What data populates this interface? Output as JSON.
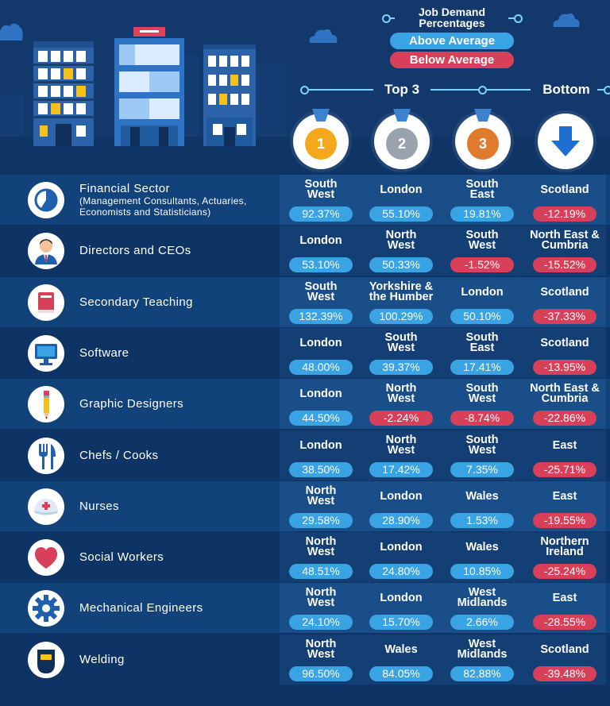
{
  "legend": {
    "title_line1": "Job Demand",
    "title_line2": "Percentages",
    "above_label": "Above Average",
    "below_label": "Below Average",
    "above_color": "#3aa3e3",
    "below_color": "#d8405a"
  },
  "columns": {
    "top_label": "Top 3",
    "bottom_label": "Bottom",
    "medals": [
      {
        "number": "1",
        "icon": "gold-medal-icon",
        "color": "#f4a91d"
      },
      {
        "number": "2",
        "icon": "silver-medal-icon",
        "color": "#9aa3ad"
      },
      {
        "number": "3",
        "icon": "bronze-medal-icon",
        "color": "#e07b2e"
      },
      {
        "number": "",
        "icon": "down-arrow-icon",
        "color": "#1e6fd0"
      }
    ]
  },
  "chart_data": {
    "type": "table",
    "columns": [
      "1",
      "2",
      "3",
      "Bottom"
    ],
    "rows": [
      {
        "category": "Financial Sector",
        "subtitle": "(Management Consultants, Actuaries, Economists and Statisticians)",
        "icon": "pie-chart-icon",
        "entries": [
          {
            "region": [
              "South",
              "West"
            ],
            "pct": "92.37%",
            "value": 92.37
          },
          {
            "region": [
              "London"
            ],
            "pct": "55.10%",
            "value": 55.1
          },
          {
            "region": [
              "South",
              "East"
            ],
            "pct": "19.81%",
            "value": 19.81
          },
          {
            "region": [
              "Scotland"
            ],
            "pct": "-12.19%",
            "value": -12.19
          }
        ]
      },
      {
        "category": "Directors and CEOs",
        "subtitle": "",
        "icon": "businessman-icon",
        "entries": [
          {
            "region": [
              "London"
            ],
            "pct": "53.10%",
            "value": 53.1
          },
          {
            "region": [
              "North",
              "West"
            ],
            "pct": "50.33%",
            "value": 50.33
          },
          {
            "region": [
              "South",
              "West"
            ],
            "pct": "-1.52%",
            "value": -1.52
          },
          {
            "region": [
              "North East &",
              "Cumbria"
            ],
            "pct": "-15.52%",
            "value": -15.52
          }
        ]
      },
      {
        "category": "Secondary Teaching",
        "subtitle": "",
        "icon": "book-icon",
        "entries": [
          {
            "region": [
              "South",
              "West"
            ],
            "pct": "132.39%",
            "value": 132.39
          },
          {
            "region": [
              "Yorkshire &",
              "the Humber"
            ],
            "pct": "100.29%",
            "value": 100.29
          },
          {
            "region": [
              "London"
            ],
            "pct": "50.10%",
            "value": 50.1
          },
          {
            "region": [
              "Scotland"
            ],
            "pct": "-37.33%",
            "value": -37.33
          }
        ]
      },
      {
        "category": "Software",
        "subtitle": "",
        "icon": "monitor-icon",
        "entries": [
          {
            "region": [
              "London"
            ],
            "pct": "48.00%",
            "value": 48.0
          },
          {
            "region": [
              "South",
              "West"
            ],
            "pct": "39.37%",
            "value": 39.37
          },
          {
            "region": [
              "South",
              "East"
            ],
            "pct": "17.41%",
            "value": 17.41
          },
          {
            "region": [
              "Scotland"
            ],
            "pct": "-13.95%",
            "value": -13.95
          }
        ]
      },
      {
        "category": "Graphic Designers",
        "subtitle": "",
        "icon": "pencil-icon",
        "entries": [
          {
            "region": [
              "London"
            ],
            "pct": "44.50%",
            "value": 44.5
          },
          {
            "region": [
              "North",
              "West"
            ],
            "pct": "-2.24%",
            "value": -2.24
          },
          {
            "region": [
              "South",
              "West"
            ],
            "pct": "-8.74%",
            "value": -8.74
          },
          {
            "region": [
              "North East &",
              "Cumbria"
            ],
            "pct": "-22.86%",
            "value": -22.86
          }
        ]
      },
      {
        "category": "Chefs / Cooks",
        "subtitle": "",
        "icon": "cutlery-icon",
        "entries": [
          {
            "region": [
              "London"
            ],
            "pct": "38.50%",
            "value": 38.5
          },
          {
            "region": [
              "North",
              "West"
            ],
            "pct": "17.42%",
            "value": 17.42
          },
          {
            "region": [
              "South",
              "West"
            ],
            "pct": "7.35%",
            "value": 7.35
          },
          {
            "region": [
              "East"
            ],
            "pct": "-25.71%",
            "value": -25.71
          }
        ]
      },
      {
        "category": "Nurses",
        "subtitle": "",
        "icon": "nurse-cap-icon",
        "entries": [
          {
            "region": [
              "North",
              "West"
            ],
            "pct": "29.58%",
            "value": 29.58
          },
          {
            "region": [
              "London"
            ],
            "pct": "28.90%",
            "value": 28.9
          },
          {
            "region": [
              "Wales"
            ],
            "pct": "1.53%",
            "value": 1.53
          },
          {
            "region": [
              "East"
            ],
            "pct": "-19.55%",
            "value": -19.55
          }
        ]
      },
      {
        "category": "Social Workers",
        "subtitle": "",
        "icon": "heart-icon",
        "entries": [
          {
            "region": [
              "North",
              "West"
            ],
            "pct": "48.51%",
            "value": 48.51
          },
          {
            "region": [
              "London"
            ],
            "pct": "24.80%",
            "value": 24.8
          },
          {
            "region": [
              "Wales"
            ],
            "pct": "10.85%",
            "value": 10.85
          },
          {
            "region": [
              "Northern",
              "Ireland"
            ],
            "pct": "-25.24%",
            "value": -25.24
          }
        ]
      },
      {
        "category": "Mechanical Engineers",
        "subtitle": "",
        "icon": "gear-icon",
        "entries": [
          {
            "region": [
              "North",
              "West"
            ],
            "pct": "24.10%",
            "value": 24.1
          },
          {
            "region": [
              "London"
            ],
            "pct": "15.70%",
            "value": 15.7
          },
          {
            "region": [
              "West",
              "Midlands"
            ],
            "pct": "2.66%",
            "value": 2.66
          },
          {
            "region": [
              "East"
            ],
            "pct": "-28.55%",
            "value": -28.55
          }
        ]
      },
      {
        "category": "Welding",
        "subtitle": "",
        "icon": "welding-mask-icon",
        "entries": [
          {
            "region": [
              "North",
              "West"
            ],
            "pct": "96.50%",
            "value": 96.5
          },
          {
            "region": [
              "Wales"
            ],
            "pct": "84.05%",
            "value": 84.05
          },
          {
            "region": [
              "West",
              "Midlands"
            ],
            "pct": "82.88%",
            "value": 82.88
          },
          {
            "region": [
              "Scotland"
            ],
            "pct": "-39.48%",
            "value": -39.48
          }
        ]
      }
    ]
  }
}
